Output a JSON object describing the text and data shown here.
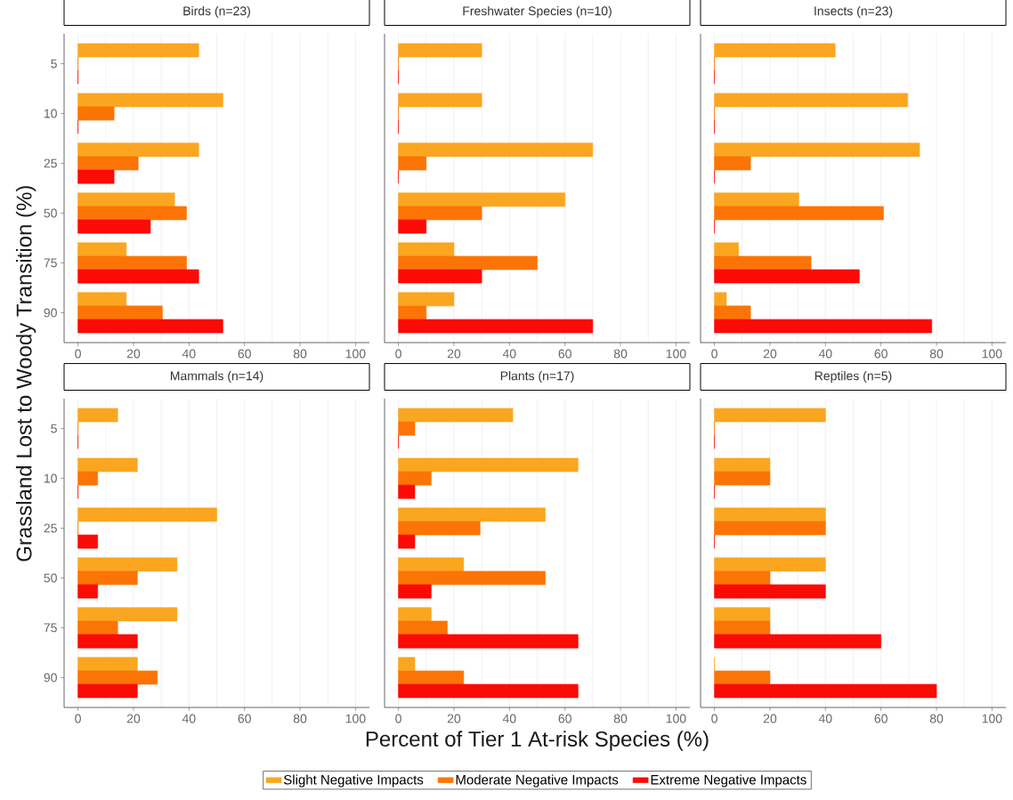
{
  "chart_data": [
    {
      "type": "bar",
      "orientation": "horizontal",
      "title": "Birds (n=23)",
      "ylabel": "Grassland Lost to Woody Transition (%)",
      "categories": [
        "5",
        "10",
        "25",
        "50",
        "75",
        "90"
      ],
      "xlim": [
        -5,
        105
      ],
      "xticks": [
        0,
        20,
        40,
        60,
        80,
        100
      ],
      "grid": "x",
      "series": [
        {
          "color": "#faa620",
          "values": [
            43.5,
            52.2,
            43.5,
            34.8,
            17.4,
            17.4
          ]
        },
        {
          "color": "#fc7405",
          "values": [
            0,
            13.0,
            21.7,
            39.1,
            39.1,
            30.4
          ]
        },
        {
          "color": "#fb0a06",
          "values": [
            0,
            0,
            13.0,
            26.1,
            43.5,
            52.2
          ]
        }
      ]
    },
    {
      "type": "bar",
      "orientation": "horizontal",
      "title": "Freshwater Species (n=10)",
      "categories": [
        "5",
        "10",
        "25",
        "50",
        "75",
        "90"
      ],
      "xlim": [
        -5,
        105
      ],
      "xticks": [
        0,
        20,
        40,
        60,
        80,
        100
      ],
      "grid": "x",
      "tick_labels": "x",
      "series": [
        {
          "color": "#faa620",
          "values": [
            30,
            30,
            70,
            60,
            20,
            20
          ]
        },
        {
          "color": "#fc7405",
          "values": [
            0,
            0,
            10,
            30,
            50,
            10
          ]
        },
        {
          "color": "#fb0a06",
          "values": [
            0,
            0,
            0,
            10,
            30,
            70
          ]
        }
      ]
    },
    {
      "type": "bar",
      "orientation": "horizontal",
      "title": "Insects (n=23)",
      "categories": [
        "5",
        "10",
        "25",
        "50",
        "75",
        "90"
      ],
      "xlim": [
        -5,
        105
      ],
      "xticks": [
        0,
        20,
        40,
        60,
        80,
        100
      ],
      "grid": "x",
      "tick_labels": "x",
      "series": [
        {
          "color": "#faa620",
          "values": [
            43.5,
            69.6,
            73.9,
            30.4,
            8.7,
            4.3
          ]
        },
        {
          "color": "#fc7405",
          "values": [
            0,
            0,
            13.0,
            60.9,
            34.8,
            13.0
          ]
        },
        {
          "color": "#fb0a06",
          "values": [
            0,
            0,
            0,
            0,
            52.2,
            78.3
          ]
        }
      ]
    },
    {
      "type": "bar",
      "orientation": "horizontal",
      "title": "Mammals (n=14)",
      "categories": [
        "5",
        "10",
        "25",
        "50",
        "75",
        "90"
      ],
      "xlim": [
        -5,
        105
      ],
      "xticks": [
        0,
        20,
        40,
        60,
        80,
        100
      ],
      "grid": "x",
      "series": [
        {
          "color": "#faa620",
          "values": [
            14.3,
            21.4,
            50.0,
            35.7,
            35.7,
            21.4
          ]
        },
        {
          "color": "#fc7405",
          "values": [
            0,
            7.1,
            0,
            21.4,
            14.3,
            28.6
          ]
        },
        {
          "color": "#fb0a06",
          "values": [
            0,
            0,
            7.1,
            7.1,
            21.4,
            21.4
          ]
        }
      ]
    },
    {
      "type": "bar",
      "orientation": "horizontal",
      "title": "Plants (n=17)",
      "xlabel": "Percent of Tier 1 At-risk Species (%)",
      "categories": [
        "5",
        "10",
        "25",
        "50",
        "75",
        "90"
      ],
      "xlim": [
        -5,
        105
      ],
      "xticks": [
        0,
        20,
        40,
        60,
        80,
        100
      ],
      "grid": "x",
      "tick_labels": "x",
      "legend": "bottom",
      "series": [
        {
          "name": "Slight Negative Impacts",
          "color": "#faa620",
          "values": [
            41.2,
            64.7,
            52.9,
            23.5,
            11.8,
            5.9
          ]
        },
        {
          "name": "Moderate Negative Impacts",
          "color": "#fc7405",
          "values": [
            5.9,
            11.8,
            29.4,
            52.9,
            17.6,
            23.5
          ]
        },
        {
          "name": "Extreme Negative Impacts",
          "color": "#fb0a06",
          "values": [
            0,
            5.9,
            5.9,
            11.8,
            64.7,
            64.7
          ]
        }
      ]
    },
    {
      "type": "bar",
      "orientation": "horizontal",
      "title": "Reptiles (n=5)",
      "categories": [
        "5",
        "10",
        "25",
        "50",
        "75",
        "90"
      ],
      "xlim": [
        -5,
        105
      ],
      "xticks": [
        0,
        20,
        40,
        60,
        80,
        100
      ],
      "grid": "x",
      "tick_labels": "x",
      "series": [
        {
          "color": "#faa620",
          "values": [
            40,
            20,
            40,
            40,
            20,
            0
          ]
        },
        {
          "color": "#fc7405",
          "values": [
            0,
            20,
            40,
            20,
            20,
            20
          ]
        },
        {
          "color": "#fb0a06",
          "values": [
            0,
            0,
            0,
            40,
            60,
            80
          ]
        }
      ]
    }
  ]
}
